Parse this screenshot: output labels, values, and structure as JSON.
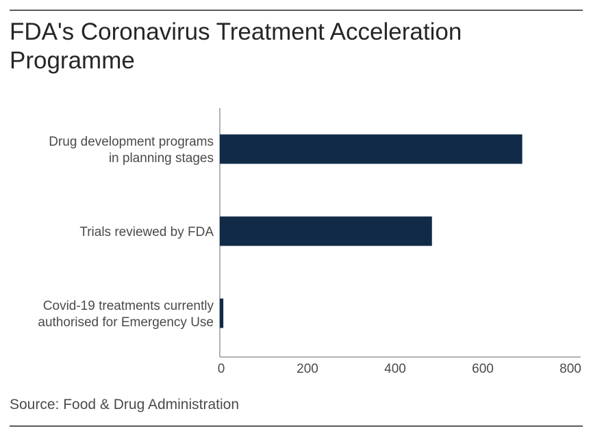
{
  "title": "FDA's Coronavirus Treatment Acceleration Programme",
  "source": "Source: Food & Drug Administration",
  "colors": {
    "bar": "#112a47",
    "axis": "#9a9a9a",
    "rule": "#5a5a5a"
  },
  "chart_data": {
    "type": "bar",
    "orientation": "horizontal",
    "title": "FDA's Coronavirus Treatment Acceleration Programme",
    "categories": [
      [
        "Drug development programs",
        "in planning stages"
      ],
      [
        "Trials reviewed by FDA"
      ],
      [
        "Covid-19 treatments currently",
        "authorised for Emergency Use"
      ]
    ],
    "values": [
      690,
      484,
      8
    ],
    "xlim": [
      0,
      800
    ],
    "xticks": [
      "0",
      "200",
      "400",
      "600",
      "800"
    ],
    "xlabel": "",
    "ylabel": "",
    "grid": false
  }
}
